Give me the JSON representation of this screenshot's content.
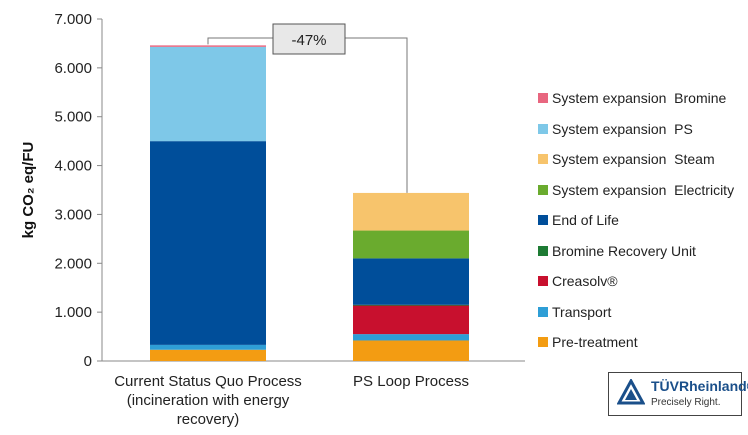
{
  "chart_data": {
    "type": "bar",
    "stacked": true,
    "ylabel": "kg CO₂ eq/FU",
    "ylim": [
      0,
      7000
    ],
    "yticks": [
      "0",
      "1.000",
      "2.000",
      "3.000",
      "4.000",
      "5.000",
      "6.000",
      "7.000"
    ],
    "categories": [
      [
        "Current Status Quo Process",
        "(incineration with energy",
        "recovery)"
      ],
      [
        "PS Loop Process"
      ]
    ],
    "series": [
      {
        "name": "Pre-treatment",
        "color": "#F39C12",
        "values": [
          230,
          420
        ]
      },
      {
        "name": "Transport",
        "color": "#2E9ED6",
        "values": [
          100,
          130
        ]
      },
      {
        "name": "Creasolv®",
        "color": "#C8102E",
        "values": [
          0,
          590
        ]
      },
      {
        "name": "Bromine Recovery Unit",
        "color": "#1E7B34",
        "values": [
          0,
          10
        ]
      },
      {
        "name": "End of Life",
        "color": "#004E9A",
        "values": [
          4170,
          950
        ]
      },
      {
        "name": "System expansion  Electricity",
        "color": "#6AAB2E",
        "values": [
          0,
          570
        ]
      },
      {
        "name": "System expansion  Steam",
        "color": "#F7C46C",
        "values": [
          0,
          770
        ]
      },
      {
        "name": "System expansion  PS",
        "color": "#7EC8E8",
        "values": [
          1930,
          0
        ]
      },
      {
        "name": "System expansion  Bromine",
        "color": "#E8667F",
        "values": [
          30,
          0
        ]
      }
    ],
    "annotation": "-47%",
    "legend_position": "right",
    "grid": false
  },
  "logo": {
    "name": "TÜVRheinland®",
    "tagline": "Precisely Right."
  }
}
